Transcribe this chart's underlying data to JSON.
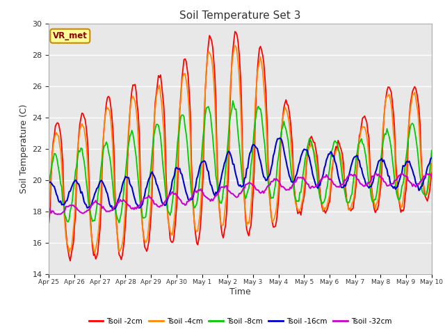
{
  "title": "Soil Temperature Set 3",
  "xlabel": "Time",
  "ylabel": "Soil Temperature (C)",
  "ylim": [
    14,
    30
  ],
  "x_tick_labels": [
    "Apr 25",
    "Apr 26",
    "Apr 27",
    "Apr 28",
    "Apr 29",
    "Apr 30",
    "May 1",
    "May 2",
    "May 3",
    "May 4",
    "May 5",
    "May 6",
    "May 7",
    "May 8",
    "May 9",
    "May 10"
  ],
  "series_colors": [
    "#ff0000",
    "#ff8800",
    "#00cc00",
    "#0000cc",
    "#cc00cc"
  ],
  "series_labels": [
    "Tsoil -2cm",
    "Tsoil -4cm",
    "Tsoil -8cm",
    "Tsoil -16cm",
    "Tsoil -32cm"
  ],
  "bg_color": "#e8e8e8",
  "annotation_text": "VR_met",
  "annotation_bg": "#ffff99",
  "annotation_border": "#cc8800",
  "grid_color": "#ffffff",
  "title_color": "#333333",
  "axis_label_color": "#333333",
  "tick_label_color": "#333333",
  "figsize": [
    6.4,
    4.8
  ],
  "dpi": 100
}
